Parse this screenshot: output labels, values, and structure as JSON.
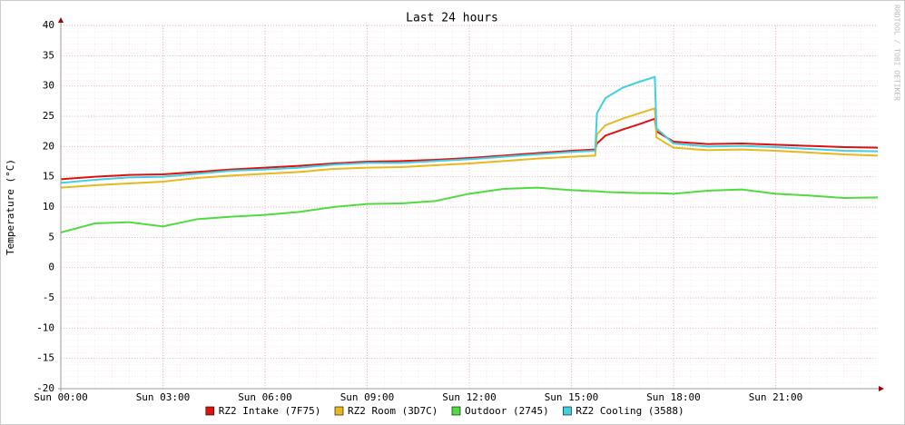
{
  "chart_data": {
    "type": "line",
    "title": "Last 24 hours",
    "y_label": "Temperature (°C)",
    "watermark": "RRDTOOL / TOBI OETIKER",
    "x": [
      0,
      1,
      2,
      3,
      4,
      5,
      6,
      7,
      8,
      9,
      10,
      11,
      12,
      13,
      14,
      15,
      15.7,
      15.75,
      16,
      16.5,
      17,
      17.45,
      17.5,
      18,
      19,
      20,
      21,
      22,
      23,
      24
    ],
    "xlim": [
      0,
      24
    ],
    "xticks": [
      {
        "value": 0,
        "label": "Sun 00:00"
      },
      {
        "value": 3,
        "label": "Sun 03:00"
      },
      {
        "value": 6,
        "label": "Sun 06:00"
      },
      {
        "value": 9,
        "label": "Sun 09:00"
      },
      {
        "value": 12,
        "label": "Sun 12:00"
      },
      {
        "value": 15,
        "label": "Sun 15:00"
      },
      {
        "value": 18,
        "label": "Sun 18:00"
      },
      {
        "value": 21,
        "label": "Sun 21:00"
      }
    ],
    "ylim": [
      -20,
      40
    ],
    "yticks": [
      -20,
      -15,
      -10,
      -5,
      0,
      5,
      10,
      15,
      20,
      25,
      30,
      35,
      40
    ],
    "grid": true,
    "legend": "bottom",
    "series": [
      {
        "name": "RZ2 Intake (7F75)",
        "color": "#e01010",
        "values": [
          14.6,
          15.0,
          15.3,
          15.4,
          15.8,
          16.2,
          16.5,
          16.8,
          17.2,
          17.5,
          17.6,
          17.8,
          18.1,
          18.5,
          18.9,
          19.3,
          19.5,
          20.5,
          21.8,
          22.8,
          23.7,
          24.6,
          22.5,
          20.8,
          20.4,
          20.5,
          20.3,
          20.1,
          19.9,
          19.8
        ]
      },
      {
        "name": "RZ2 Room (3D7C)",
        "color": "#e8b820",
        "values": [
          13.2,
          13.6,
          13.9,
          14.2,
          14.8,
          15.2,
          15.5,
          15.8,
          16.3,
          16.5,
          16.6,
          16.9,
          17.2,
          17.6,
          18.0,
          18.3,
          18.5,
          22.0,
          23.5,
          24.6,
          25.5,
          26.3,
          21.5,
          19.8,
          19.4,
          19.5,
          19.3,
          19.0,
          18.7,
          18.5
        ]
      },
      {
        "name": "Outdoor (2745)",
        "color": "#50dc40",
        "values": [
          5.8,
          7.3,
          7.5,
          6.8,
          8.0,
          8.4,
          8.7,
          9.2,
          10.0,
          10.5,
          10.6,
          11.0,
          12.2,
          13.0,
          13.2,
          12.8,
          12.6,
          12.6,
          12.5,
          12.4,
          12.3,
          12.3,
          12.3,
          12.2,
          12.7,
          12.9,
          12.2,
          11.9,
          11.5,
          11.6
        ]
      },
      {
        "name": "RZ2 Cooling (3588)",
        "color": "#40d0e0",
        "values": [
          14.0,
          14.5,
          14.9,
          15.0,
          15.5,
          16.0,
          16.2,
          16.5,
          17.0,
          17.3,
          17.3,
          17.6,
          17.9,
          18.3,
          18.7,
          19.1,
          19.3,
          25.5,
          28.0,
          29.7,
          30.7,
          31.5,
          23.0,
          20.5,
          20.0,
          20.1,
          19.9,
          19.6,
          19.3,
          19.2
        ]
      }
    ]
  }
}
